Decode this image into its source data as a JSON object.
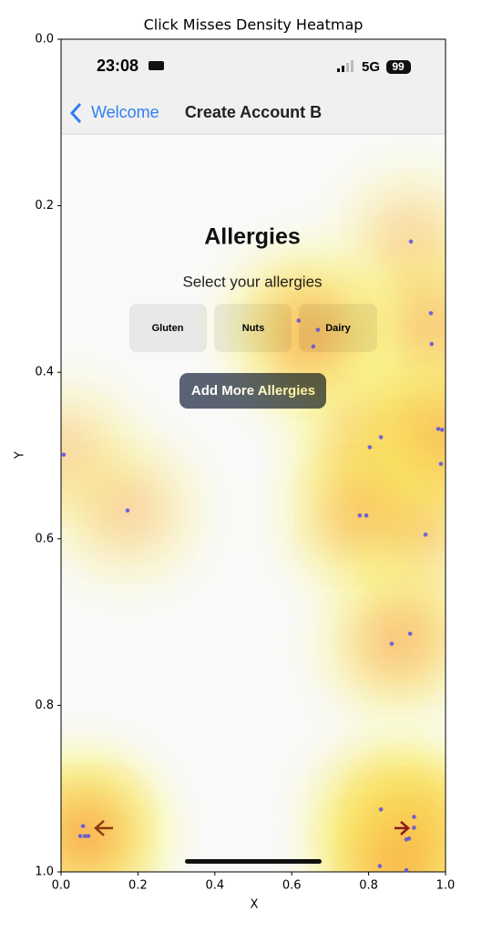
{
  "chart_data": {
    "type": "scatter",
    "title": "Click Misses Density Heatmap",
    "x_label": "X",
    "y_label": "Y",
    "xlim": [
      0,
      1
    ],
    "ylim": [
      1,
      0
    ],
    "xticks": [
      {
        "value": 0,
        "label": "0.0"
      },
      0.2,
      0.4,
      0.6,
      0.8,
      {
        "value": 1,
        "label": "1.0"
      }
    ],
    "yticks": [
      {
        "value": 0,
        "label": "0.0"
      },
      0.2,
      0.4,
      0.6,
      0.8,
      {
        "value": 1,
        "label": "1.0"
      }
    ],
    "color": "#5b4fe0",
    "grid": false,
    "x": [
      0.91,
      0.962,
      0.618,
      0.668,
      0.964,
      0.656,
      0.832,
      0.803,
      0.981,
      0.991,
      0.007,
      0.988,
      0.173,
      0.777,
      0.794,
      0.948,
      0.908,
      0.86,
      0.832,
      0.918,
      0.057,
      0.918,
      0.05,
      0.062,
      0.071,
      0.905,
      0.898,
      0.829,
      0.898
    ],
    "values": [
      0.243,
      0.329,
      0.338,
      0.349,
      0.366,
      0.369,
      0.478,
      0.49,
      0.468,
      0.469,
      0.499,
      0.51,
      0.566,
      0.572,
      0.572,
      0.595,
      0.714,
      0.726,
      0.925,
      0.934,
      0.945,
      0.947,
      0.957,
      0.957,
      0.957,
      0.96,
      0.961,
      0.993,
      0.998
    ]
  },
  "screenshot": {
    "time": "23:08",
    "network": "5G",
    "battery": "99",
    "back": "Welcome",
    "nav_title": "Create Account B",
    "heading": "Allergies",
    "subheading": "Select your allergies",
    "options": [
      "Gluten",
      "Nuts",
      "Dairy"
    ],
    "button": "Add More Allergies"
  }
}
